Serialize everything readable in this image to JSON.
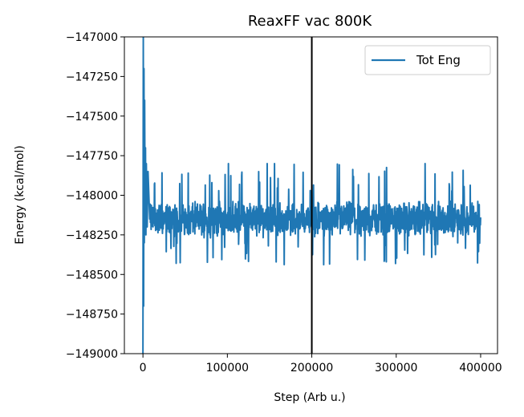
{
  "chart_data": {
    "type": "line",
    "title": "ReaxFF vac 800K",
    "xlabel": "Step (Arb u.)",
    "ylabel": "Energy (kcal/mol)",
    "xlim": [
      -22000,
      420000
    ],
    "ylim": [
      -149000,
      -147000
    ],
    "xticks": [
      0,
      100000,
      200000,
      300000,
      400000
    ],
    "xtick_labels": [
      "0",
      "100000",
      "200000",
      "300000",
      "400000"
    ],
    "yticks": [
      -147000,
      -147250,
      -147500,
      -147750,
      -148000,
      -148250,
      -148500,
      -148750,
      -149000
    ],
    "ytick_labels": [
      "−147000",
      "−147250",
      "−147500",
      "−147750",
      "−148000",
      "−148250",
      "−148500",
      "−148750",
      "−149000"
    ],
    "grid": false,
    "legend": "top-right",
    "series": [
      {
        "name": "Tot Eng",
        "color": "#1f77b4",
        "initial_transient": {
          "x": [
            0,
            400,
            800,
            1200,
            1600,
            2000,
            2500,
            3000,
            3500,
            4000,
            5000,
            6000,
            8000
          ],
          "y": [
            -149000,
            -147000,
            -148700,
            -147200,
            -148300,
            -147400,
            -148100,
            -147700,
            -148250,
            -147800,
            -148200,
            -147850,
            -148150
          ]
        },
        "steady_state": {
          "x_start": 8000,
          "x_end": 400000,
          "mean": -148150,
          "fluctuation_range": [
            -148450,
            -147800
          ]
        }
      }
    ],
    "vertical_line": {
      "x": 200000,
      "color": "#000000"
    }
  }
}
